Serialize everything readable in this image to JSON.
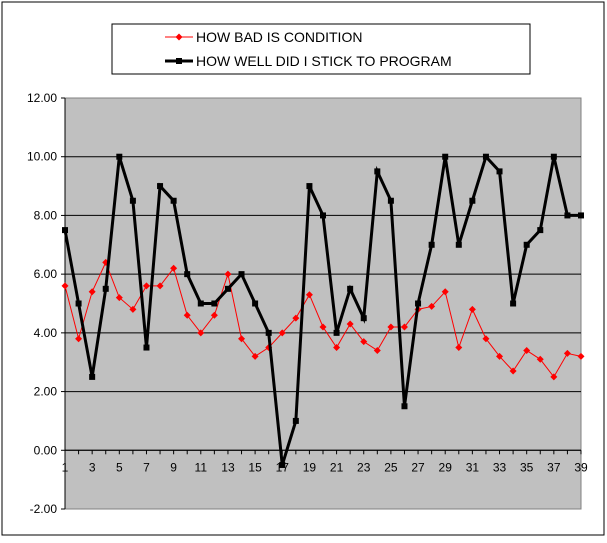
{
  "chart_data": {
    "type": "line",
    "title": "",
    "xlabel": "",
    "ylabel": "",
    "ylim": [
      -2,
      12
    ],
    "ytick_values": [
      -2,
      0,
      2,
      4,
      6,
      8,
      10,
      12
    ],
    "ytick_labels": [
      "-2.00",
      "0.00",
      "2.00",
      "4.00",
      "6.00",
      "8.00",
      "10.00",
      "12.00"
    ],
    "xlim": [
      1,
      39
    ],
    "xtick_values": [
      1,
      3,
      5,
      7,
      9,
      11,
      13,
      15,
      17,
      19,
      21,
      23,
      25,
      27,
      29,
      31,
      33,
      35,
      37,
      39
    ],
    "xtick_labels": [
      "1",
      "3",
      "5",
      "7",
      "9",
      "11",
      "13",
      "15",
      "17",
      "19",
      "21",
      "23",
      "25",
      "27",
      "29",
      "31",
      "33",
      "35",
      "37",
      "39"
    ],
    "x": [
      1,
      2,
      3,
      4,
      5,
      6,
      7,
      8,
      9,
      10,
      11,
      12,
      13,
      14,
      15,
      16,
      17,
      18,
      19,
      20,
      21,
      22,
      23,
      24,
      25,
      26,
      27,
      28,
      29,
      30,
      31,
      32,
      33,
      34,
      35,
      36,
      37,
      38,
      39
    ],
    "grid": "horizontal",
    "plot_background": "#c0c0c0",
    "legend_position": "top-center",
    "series": [
      {
        "name": "HOW BAD IS CONDITION",
        "color": "#ff0000",
        "marker": "diamond",
        "values": [
          5.6,
          3.8,
          5.4,
          6.4,
          5.2,
          4.8,
          5.6,
          5.6,
          6.2,
          4.6,
          4.0,
          4.6,
          6.0,
          3.8,
          3.2,
          3.5,
          4.0,
          4.5,
          5.3,
          4.2,
          3.5,
          4.3,
          3.7,
          3.4,
          4.2,
          4.2,
          4.8,
          4.9,
          5.4,
          3.5,
          4.8,
          3.8,
          3.2,
          2.7,
          3.4,
          3.1,
          2.5,
          3.3,
          3.2
        ]
      },
      {
        "name": "HOW WELL DID I STICK TO PROGRAM",
        "color": "#000000",
        "marker": "square",
        "values": [
          7.5,
          5.0,
          2.5,
          5.5,
          10.0,
          8.5,
          3.5,
          9.0,
          8.5,
          6.0,
          5.0,
          5.0,
          5.5,
          6.0,
          5.0,
          4.0,
          -0.5,
          1.0,
          9.0,
          8.0,
          4.0,
          5.5,
          4.5,
          9.5,
          8.5,
          1.5,
          5.0,
          7.0,
          10.0,
          7.0,
          8.5,
          10.0,
          9.5,
          5.0,
          7.0,
          7.5,
          10.0,
          8.0,
          8.0
        ]
      }
    ]
  }
}
